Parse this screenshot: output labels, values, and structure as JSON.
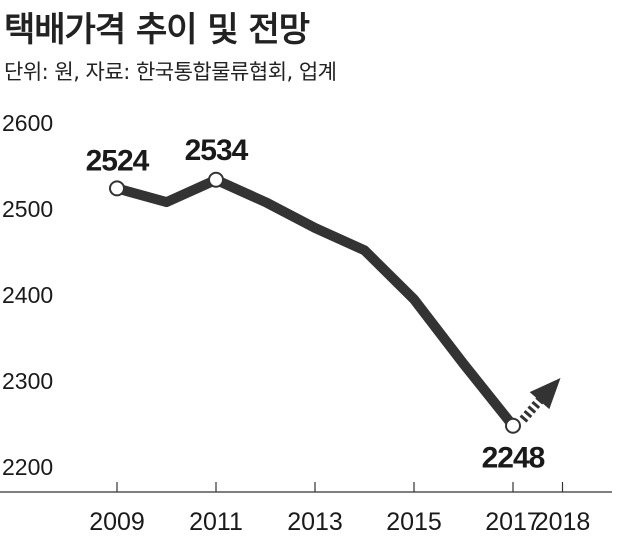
{
  "header": {
    "title": "택배가격 추이 및 전망",
    "subtitle": "단위: 원, 자료: 한국통합물류협회, 업계"
  },
  "chart_data": {
    "type": "line",
    "title": "택배가격 추이 및 전망",
    "subtitle": "단위: 원, 자료: 한국통합물류협회, 업계",
    "ylim": [
      2200,
      2600
    ],
    "yticks": [
      2200,
      2300,
      2400,
      2500,
      2600
    ],
    "xticks": [
      2009,
      2011,
      2013,
      2015,
      2017,
      2018
    ],
    "series": [
      {
        "x": [
          2009,
          2010,
          2011,
          2012,
          2013,
          2014,
          2015,
          2016,
          2017
        ],
        "values": [
          2524,
          2508,
          2534,
          2508,
          2478,
          2452,
          2395,
          2320,
          2248
        ]
      }
    ],
    "forecast": {
      "from": [
        2017,
        2248
      ],
      "to": [
        2018,
        2300
      ],
      "style": "dotted-arrow"
    },
    "data_labels": [
      {
        "x": 2009,
        "y": 2524,
        "text": "2524"
      },
      {
        "x": 2011,
        "y": 2534,
        "text": "2534"
      },
      {
        "x": 2017,
        "y": 2248,
        "text": "2248"
      }
    ],
    "grid": false,
    "colors": {
      "line": "#333333",
      "marker_fill": "#ffffff",
      "axis": "#333333"
    }
  }
}
